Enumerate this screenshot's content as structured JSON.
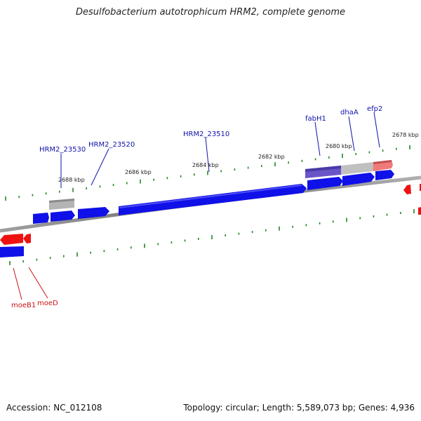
{
  "title": "Desulfobacterium autotrophicum HRM2, complete genome",
  "footer": {
    "accession": "Accession: NC_012108",
    "summary": "Topology: circular; Length: 5,589,073 bp; Genes: 4,936"
  },
  "colors": {
    "forward_gene": "#1010e8",
    "reverse_gene": "#ee1111",
    "grey_gene": "#b4b4b4",
    "purple_gene": "#6a55c8",
    "pink_gene": "#f07a7a",
    "tick": "#228822",
    "backbone": "#888888",
    "forward_label": "#1111aa",
    "reverse_label": "#cc1111"
  },
  "scale_labels": [
    "2688 kbp",
    "2686 kbp",
    "2684 kbp",
    "2682 kbp",
    "2680 kbp",
    "2678 kbp"
  ],
  "gene_labels": {
    "forward": [
      "HRM2_23530",
      "HRM2_23520",
      "HRM2_23510",
      "fabH1",
      "dhaA",
      "efp2"
    ],
    "reverse": [
      "moeB1",
      "moeD"
    ]
  }
}
